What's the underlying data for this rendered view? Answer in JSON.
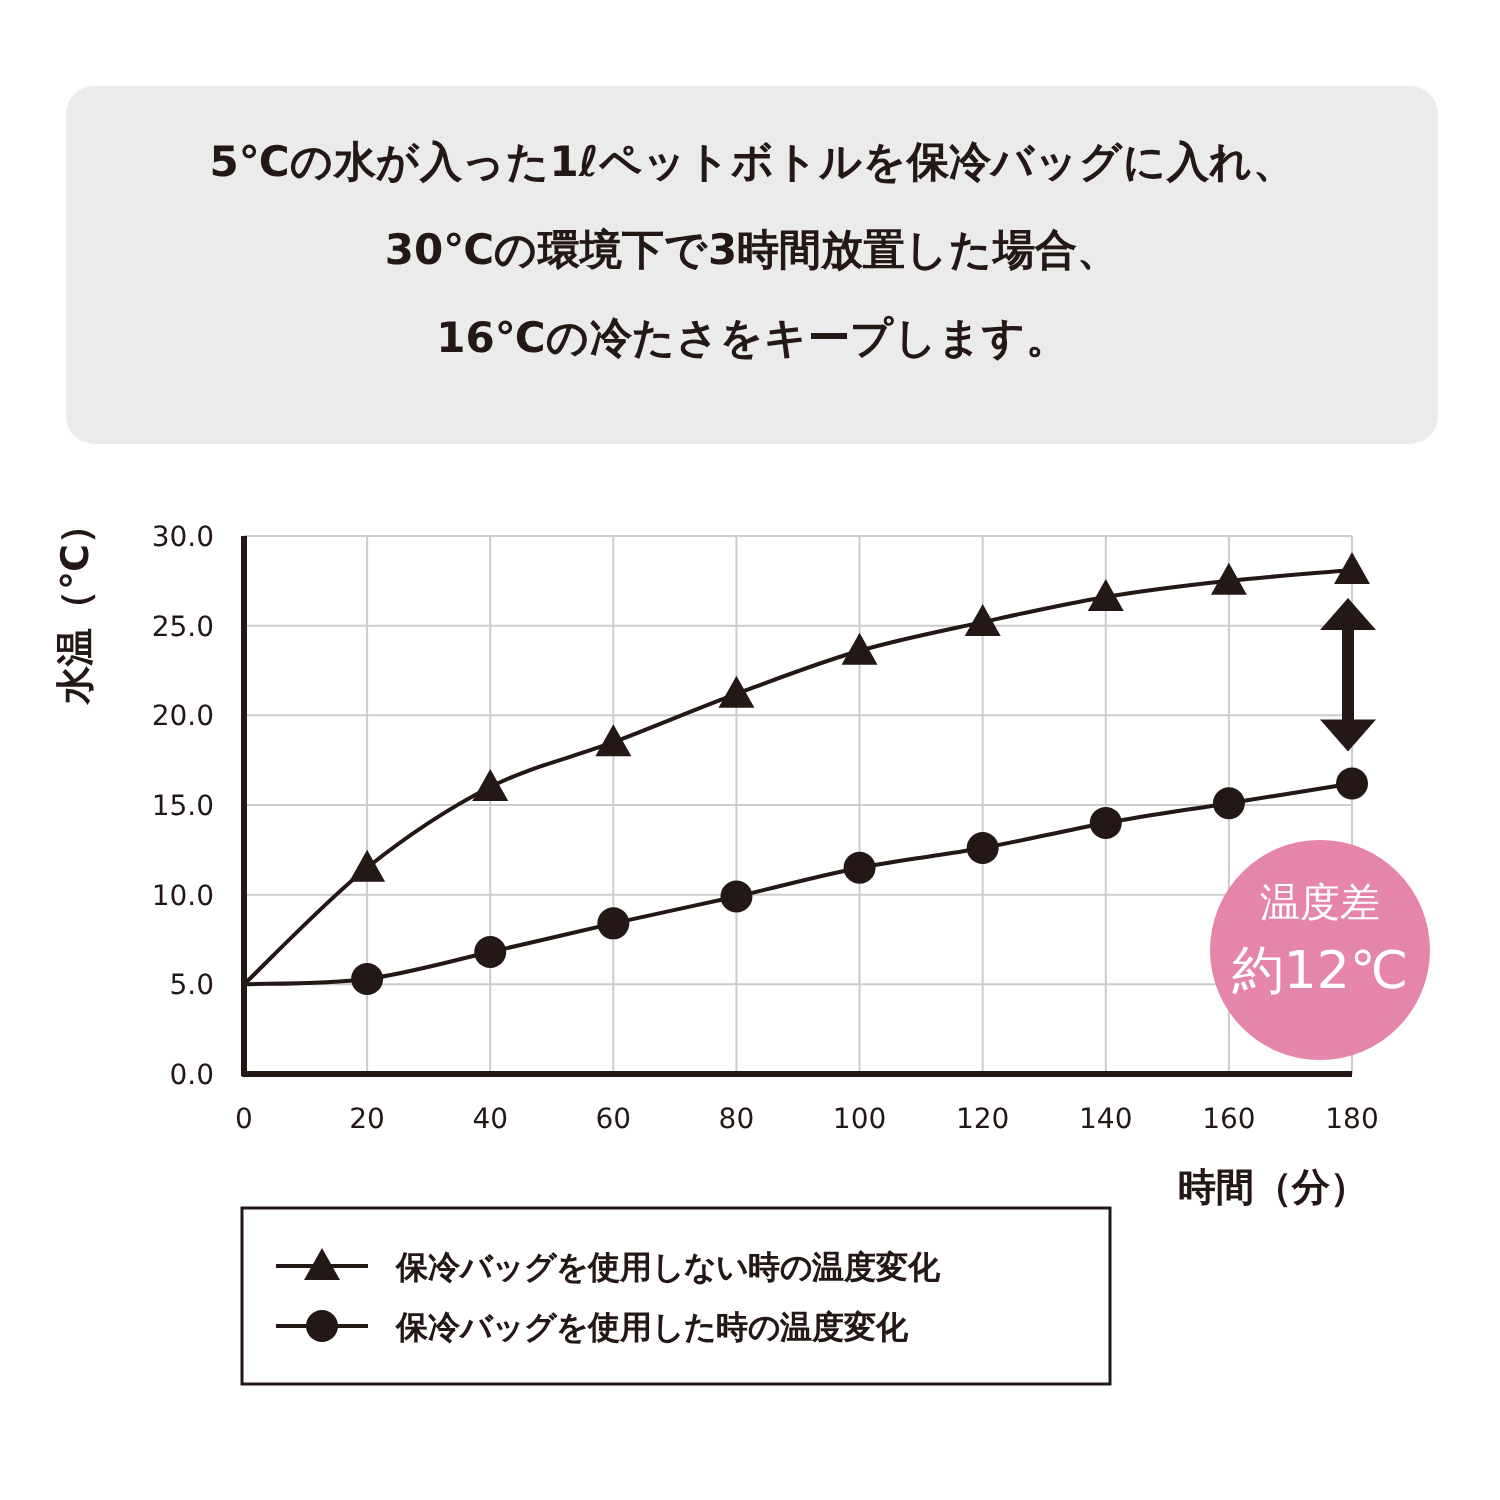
{
  "chart_data": {
    "type": "line",
    "title": "5℃の水が入った1ℓペットボトルを保冷バッグに入れ、\n30℃の環境下で3時間放置した場合、\n16℃の冷たさをキープします。",
    "xlabel": "時間（分）",
    "ylabel": "水温（℃）",
    "x": [
      0,
      20,
      40,
      60,
      80,
      100,
      120,
      140,
      160,
      180
    ],
    "series": [
      {
        "name": "保冷バッグを使用しない時の温度変化",
        "color": "#231815",
        "marker": "triangle",
        "values": [
          5,
          11.5,
          16,
          18.5,
          21.2,
          23.6,
          25.2,
          26.6,
          27.5,
          28.1
        ]
      },
      {
        "name": "保冷バッグを使用した時の温度変化",
        "color": "#231815",
        "marker": "circle",
        "values": [
          5,
          5.3,
          6.8,
          8.4,
          9.9,
          11.5,
          12.6,
          14,
          15.1,
          16.2
        ]
      }
    ],
    "xlim": [
      0,
      180
    ],
    "xticks": [
      0,
      20,
      40,
      60,
      80,
      100,
      120,
      140,
      160,
      180
    ],
    "ylim": [
      0,
      30
    ],
    "yticks": [
      {
        "value": 0,
        "label": "0.0"
      },
      {
        "value": 5,
        "label": "5.0"
      },
      {
        "value": 10,
        "label": "10.0"
      },
      {
        "value": 15,
        "label": "15.0"
      },
      {
        "value": 20,
        "label": "20.0"
      },
      {
        "value": 25,
        "label": "25.0"
      },
      {
        "value": 30,
        "label": "30.0"
      }
    ],
    "grid": true,
    "legend": "bottom",
    "annotations": [
      "温度差",
      "約12℃"
    ]
  }
}
